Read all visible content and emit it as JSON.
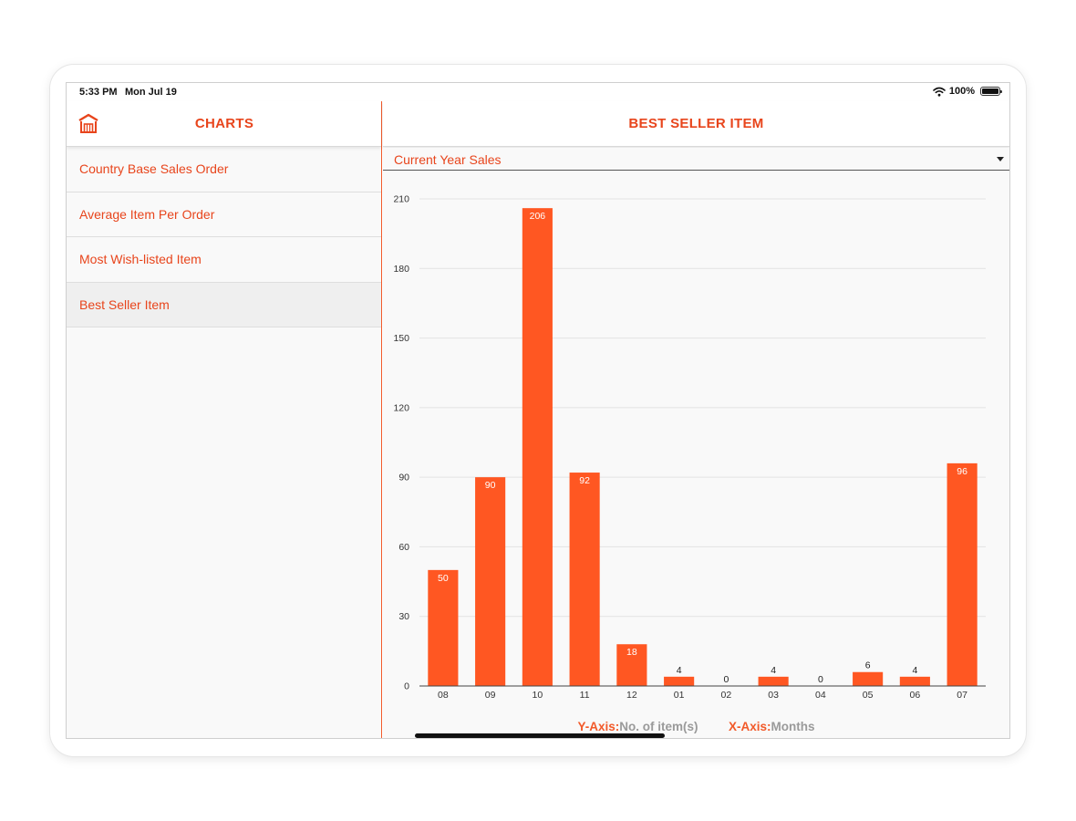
{
  "status_bar": {
    "time": "5:33 PM",
    "date": "Mon Jul 19",
    "battery": "100%"
  },
  "sidebar": {
    "title": "CHARTS",
    "items": [
      {
        "label": "Country Base Sales Order",
        "active": false
      },
      {
        "label": "Average Item Per Order",
        "active": false
      },
      {
        "label": "Most Wish-listed Item",
        "active": false
      },
      {
        "label": "Best Seller Item",
        "active": true
      }
    ]
  },
  "main": {
    "title": "BEST SELLER ITEM",
    "dropdown": {
      "selected": "Current Year Sales"
    }
  },
  "legend": {
    "y_key": "Y-Axis:",
    "y_val": "No. of item(s)",
    "x_key": "X-Axis:",
    "x_val": "Months"
  },
  "colors": {
    "accent": "#e8451c",
    "bar": "#ff5722",
    "divider": "#f25a2a"
  },
  "chart_data": {
    "type": "bar",
    "categories": [
      "08",
      "09",
      "10",
      "11",
      "12",
      "01",
      "02",
      "03",
      "04",
      "05",
      "06",
      "07"
    ],
    "values": [
      50,
      90,
      206,
      92,
      18,
      4,
      0,
      4,
      0,
      6,
      4,
      96
    ],
    "ylim": [
      0,
      210
    ],
    "yticks": [
      0,
      30,
      60,
      90,
      120,
      150,
      180,
      210
    ],
    "ylabel": "No. of item(s)",
    "xlabel": "Months",
    "grid": true
  }
}
